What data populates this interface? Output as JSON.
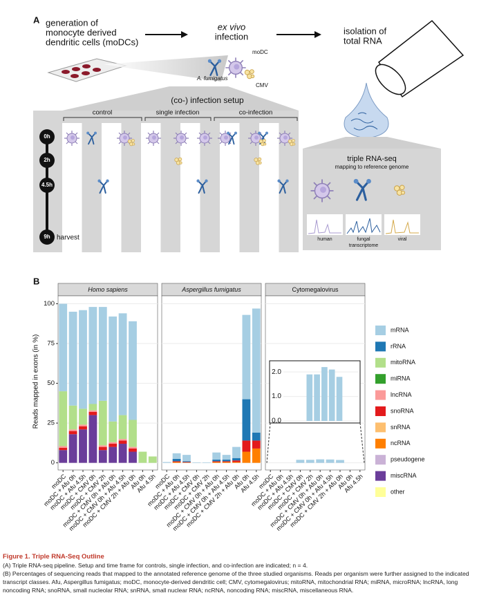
{
  "panel_a": {
    "label": "A",
    "step1": [
      "generation of",
      "monocyte derived",
      "dendritic cells (moDCs)"
    ],
    "step2": [
      "ex vivo",
      "infection"
    ],
    "step3": [
      "isolation of",
      "total RNA"
    ],
    "cell_labels": [
      "moDC",
      "A. fumigatus",
      "CMV"
    ],
    "setup_title": "(co-) infection setup",
    "groups": [
      "control",
      "single infection",
      "co-infection"
    ],
    "times": [
      "0h",
      "2h",
      "4.5h",
      "9h"
    ],
    "harvest": "harvest",
    "seq_title": "triple RNA-seq",
    "seq_subtitle": "mapping to reference genome",
    "organisms": [
      [
        "human"
      ],
      [
        "fungal",
        "transcriptome"
      ],
      [
        "viral"
      ]
    ]
  },
  "panel_b": {
    "label": "B"
  },
  "chart_data": {
    "type": "bar",
    "stacked": true,
    "y_label": "Reads mapped in exons (in %)",
    "ylim": [
      -4.5,
      105
    ],
    "yticks": [
      0,
      25,
      50,
      75,
      100
    ],
    "grid": true,
    "categories": [
      "moDC",
      "moDC + Afu 0h",
      "moDC + Afu 4.5h",
      "moDC + CMV 0h",
      "moDC + CMV 2h",
      "moDC + CMV 0h + Afu 0h",
      "moDC + CMV 0h + Afu 4.5h",
      "moDC + CMV 2h + Afu 0h",
      "Afu 0h",
      "Afu 4.5h"
    ],
    "series": [
      {
        "name": "mRNA",
        "color": "#a6cee3"
      },
      {
        "name": "rRNA",
        "color": "#1f78b4"
      },
      {
        "name": "mitoRNA",
        "color": "#b2df8a"
      },
      {
        "name": "miRNA",
        "color": "#33a02c"
      },
      {
        "name": "lncRNA",
        "color": "#fb9a99"
      },
      {
        "name": "snoRNA",
        "color": "#e31a1c"
      },
      {
        "name": "snRNA",
        "color": "#fdbf6f"
      },
      {
        "name": "ncRNA",
        "color": "#ff7f00"
      },
      {
        "name": "pseudogene",
        "color": "#cab2d6"
      },
      {
        "name": "miscRNA",
        "color": "#6a3d9a"
      },
      {
        "name": "other",
        "color": "#ffff99"
      }
    ],
    "facets": [
      {
        "title": "Homo sapiens",
        "italic": true,
        "series": [
          {
            "values": [
              55,
              59,
              62,
              61,
              59,
              66,
              64,
              62,
              0,
              0
            ]
          },
          {
            "values": [
              0,
              0,
              0,
              0,
              0,
              0,
              0,
              0,
              0,
              0
            ]
          },
          {
            "values": [
              34.5,
              15,
              10,
              4,
              28,
              13,
              15,
              17,
              7,
              4
            ]
          },
          {
            "values": [
              0,
              0,
              0,
              0,
              0,
              0,
              0,
              0,
              0,
              0
            ]
          },
          {
            "values": [
              1,
              1,
              1,
              1,
              1,
              1,
              1,
              1,
              0,
              0
            ]
          },
          {
            "values": [
              1.5,
              2,
              2,
              2,
              2,
              2,
              2,
              2,
              0,
              0
            ]
          },
          {
            "values": [
              0,
              0,
              0,
              0,
              0,
              0,
              0,
              0,
              0,
              0
            ]
          },
          {
            "values": [
              0,
              0,
              0,
              0,
              0,
              0,
              0,
              0,
              0,
              0
            ]
          },
          {
            "values": [
              0,
              0,
              0,
              0,
              0,
              0,
              0,
              0,
              0,
              0
            ]
          },
          {
            "values": [
              8,
              18,
              21,
              30,
              8,
              10,
              12,
              7,
              0,
              0
            ]
          },
          {
            "values": [
              0,
              0,
              0,
              0,
              0,
              0,
              0,
              0,
              0,
              0
            ]
          }
        ]
      },
      {
        "title": "Aspergillus fumigatus",
        "italic": true,
        "series": [
          {
            "values": [
              0.5,
              3.5,
              4,
              0.3,
              0.3,
              4.5,
              3,
              7,
              53,
              78
            ]
          },
          {
            "values": [
              0,
              1.5,
              0.5,
              0,
              0,
              1,
              1,
              1.5,
              26,
              5
            ]
          },
          {
            "values": [
              0,
              0,
              0,
              0,
              0,
              0,
              0,
              0,
              0,
              0
            ]
          },
          {
            "values": [
              0,
              0,
              0,
              0,
              0,
              0,
              0,
              0,
              0,
              0
            ]
          },
          {
            "values": [
              0,
              0,
              0,
              0,
              0,
              0,
              0,
              0,
              0,
              0
            ]
          },
          {
            "values": [
              0,
              0.5,
              0.3,
              0,
              0,
              0.5,
              0.5,
              1,
              7,
              5
            ]
          },
          {
            "values": [
              0,
              0,
              0,
              0,
              0,
              0,
              0,
              0,
              0,
              0
            ]
          },
          {
            "values": [
              0,
              0.5,
              0.2,
              0,
              0,
              0.5,
              0.5,
              0.5,
              7,
              9
            ]
          },
          {
            "values": [
              0,
              0,
              0,
              0,
              0,
              0,
              0,
              0,
              0,
              0
            ]
          },
          {
            "values": [
              0,
              0,
              0,
              0,
              0,
              0,
              0,
              0,
              0,
              0
            ]
          },
          {
            "values": [
              0,
              0,
              0,
              0,
              0,
              0,
              0,
              0,
              0,
              0
            ]
          }
        ]
      },
      {
        "title": "Cytomegalovirus",
        "italic": false,
        "series": [
          {
            "values": [
              0,
              0,
              0,
              1.9,
              1.9,
              2.2,
              2.1,
              1.8,
              0,
              0
            ]
          },
          {
            "values": [
              0,
              0,
              0,
              0,
              0,
              0,
              0,
              0,
              0,
              0
            ]
          },
          {
            "values": [
              0,
              0,
              0,
              0,
              0,
              0,
              0,
              0,
              0,
              0
            ]
          },
          {
            "values": [
              0,
              0,
              0,
              0,
              0,
              0,
              0,
              0,
              0,
              0
            ]
          },
          {
            "values": [
              0,
              0,
              0,
              0,
              0,
              0,
              0,
              0,
              0,
              0
            ]
          },
          {
            "values": [
              0,
              0,
              0,
              0,
              0,
              0,
              0,
              0,
              0,
              0
            ]
          },
          {
            "values": [
              0,
              0,
              0,
              0,
              0,
              0,
              0,
              0,
              0,
              0
            ]
          },
          {
            "values": [
              0,
              0,
              0,
              0,
              0,
              0,
              0,
              0,
              0,
              0
            ]
          },
          {
            "values": [
              0,
              0,
              0,
              0,
              0,
              0,
              0,
              0,
              0,
              0
            ]
          },
          {
            "values": [
              0,
              0,
              0,
              0,
              0,
              0,
              0,
              0,
              0,
              0
            ]
          },
          {
            "values": [
              0,
              0,
              0,
              0,
              0,
              0,
              0,
              0,
              0,
              0
            ]
          }
        ],
        "inset": {
          "ylim": [
            0,
            2.4
          ],
          "yticks": [
            {
              "value": 0,
              "label": "0.0"
            },
            {
              "value": 1,
              "label": "1.0"
            },
            {
              "value": 2,
              "label": "2.0"
            }
          ]
        }
      }
    ]
  },
  "caption": {
    "title": "Figure 1. Triple RNA-Seq Outline",
    "a": "(A) Triple RNA-seq pipeline. Setup and time frame for controls, single infection, and co-infection are indicated; n = 4.",
    "b": "(B) Percentages of sequencing reads that mapped to the annotated reference genome of the three studied organisms. Reads per organism were further assigned to the indicated transcript classes. Afu, Aspergillus fumigatus; moDC, monocyte-derived dendritic cell; CMV, cytomegalovirus; mitoRNA, mitochondrial RNA; miRNA, microRNA; lncRNA, long noncoding RNA; snoRNA, small nucleolar RNA; snRNA, small nuclear RNA; ncRNA, noncoding RNA; miscRNA, miscellaneous RNA."
  }
}
